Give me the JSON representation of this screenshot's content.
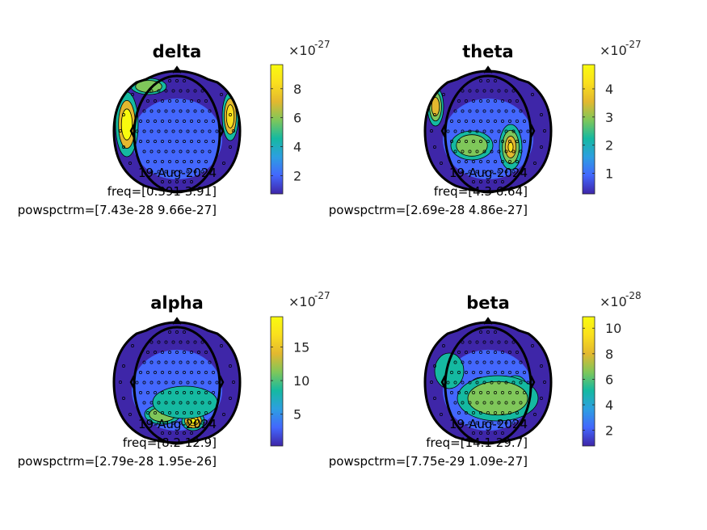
{
  "chart_data": [
    {
      "type": "heatmap",
      "title": "delta",
      "multiplier": "×10",
      "exponent": "-27",
      "ticks": [
        2,
        4,
        6,
        8
      ],
      "clim": [
        0.743,
        9.66
      ],
      "hotspot": "sides",
      "info": {
        "date": "19-Aug-2024",
        "freq": "freq=[0.391 3.91]",
        "powspctrm": "powspctrm=[7.43e-28 9.66e-27]"
      }
    },
    {
      "type": "heatmap",
      "title": "theta",
      "multiplier": "×10",
      "exponent": "-27",
      "ticks": [
        1,
        2,
        3,
        4
      ],
      "clim": [
        0.269,
        4.86
      ],
      "hotspot": "right-posterior",
      "info": {
        "date": "19-Aug-2024",
        "freq": "freq=[4.3 6.64]",
        "powspctrm": "powspctrm=[2.69e-28 4.86e-27]"
      }
    },
    {
      "type": "heatmap",
      "title": "alpha",
      "multiplier": "×10",
      "exponent": "-27",
      "ticks": [
        5,
        10,
        15
      ],
      "clim": [
        0.279,
        19.5
      ],
      "hotspot": "occipital",
      "info": {
        "date": "19-Aug-2024",
        "freq": "freq=[8.2 12.9]",
        "powspctrm": "powspctrm=[2.79e-28 1.95e-26]"
      }
    },
    {
      "type": "heatmap",
      "title": "beta",
      "multiplier": "×10",
      "exponent": "-28",
      "ticks": [
        2,
        4,
        6,
        8,
        10
      ],
      "clim": [
        0.775,
        10.9
      ],
      "hotspot": "central",
      "info": {
        "date": "19-Aug-2024",
        "freq": "freq=[14.1 29.7]",
        "powspctrm": "powspctrm=[7.75e-29 1.09e-27]"
      }
    }
  ],
  "colors": {
    "parula": [
      "#3e26a8",
      "#4367fd",
      "#2d9fe1",
      "#15b9a1",
      "#7fc75a",
      "#e3b82f",
      "#fadf1e",
      "#f9fb0e"
    ],
    "outline": "#000000"
  }
}
